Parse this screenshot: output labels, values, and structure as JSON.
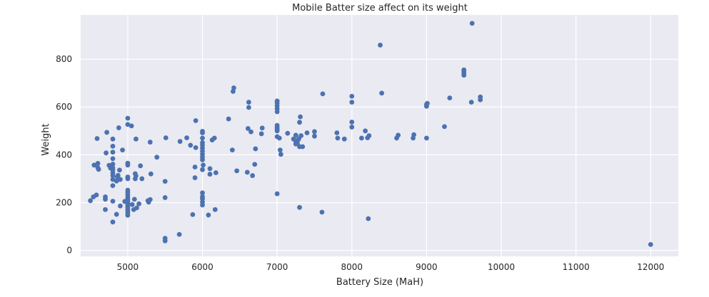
{
  "chart_data": {
    "type": "scatter",
    "title": "Mobile Batter size affect on its weight",
    "xlabel": "Battery Size (MaH)",
    "ylabel": "Weight",
    "xlim": [
      4370,
      12370
    ],
    "ylim": [
      -25,
      985
    ],
    "xticks": [
      5000,
      6000,
      7000,
      8000,
      9000,
      10000,
      11000,
      12000
    ],
    "yticks": [
      0,
      200,
      400,
      600,
      800
    ],
    "grid": true,
    "point_color": "#4c72b0",
    "background_color": "#eaeaf2",
    "points": [
      [
        4500,
        208
      ],
      [
        4540,
        224
      ],
      [
        4550,
        357
      ],
      [
        4580,
        232
      ],
      [
        4590,
        468
      ],
      [
        4600,
        346
      ],
      [
        4600,
        364
      ],
      [
        4610,
        339
      ],
      [
        4700,
        214
      ],
      [
        4700,
        224
      ],
      [
        4700,
        171
      ],
      [
        4710,
        408
      ],
      [
        4720,
        494
      ],
      [
        4750,
        356
      ],
      [
        4770,
        344
      ],
      [
        4800,
        119
      ],
      [
        4800,
        206
      ],
      [
        4800,
        271
      ],
      [
        4800,
        297
      ],
      [
        4800,
        313
      ],
      [
        4800,
        324
      ],
      [
        4800,
        336
      ],
      [
        4800,
        345
      ],
      [
        4800,
        361
      ],
      [
        4800,
        384
      ],
      [
        4800,
        411
      ],
      [
        4800,
        436
      ],
      [
        4800,
        466
      ],
      [
        4850,
        151
      ],
      [
        4850,
        290
      ],
      [
        4860,
        308
      ],
      [
        4870,
        314
      ],
      [
        4880,
        513
      ],
      [
        4890,
        336
      ],
      [
        4900,
        297
      ],
      [
        4900,
        186
      ],
      [
        4930,
        420
      ],
      [
        4960,
        205
      ],
      [
        5000,
        147
      ],
      [
        5000,
        156
      ],
      [
        5000,
        165
      ],
      [
        5000,
        172
      ],
      [
        5000,
        180
      ],
      [
        5000,
        188
      ],
      [
        5000,
        196
      ],
      [
        5000,
        204
      ],
      [
        5000,
        213
      ],
      [
        5000,
        222
      ],
      [
        5000,
        232
      ],
      [
        5000,
        242
      ],
      [
        5000,
        252
      ],
      [
        5000,
        300
      ],
      [
        5000,
        307
      ],
      [
        5000,
        357
      ],
      [
        5000,
        365
      ],
      [
        5000,
        527
      ],
      [
        5000,
        553
      ],
      [
        5050,
        521
      ],
      [
        5060,
        192
      ],
      [
        5080,
        171
      ],
      [
        5090,
        214
      ],
      [
        5100,
        300
      ],
      [
        5100,
        321
      ],
      [
        5110,
        466
      ],
      [
        5110,
        312
      ],
      [
        5120,
        178
      ],
      [
        5150,
        195
      ],
      [
        5170,
        354
      ],
      [
        5190,
        300
      ],
      [
        5270,
        208
      ],
      [
        5280,
        202
      ],
      [
        5300,
        213
      ],
      [
        5300,
        453
      ],
      [
        5310,
        320
      ],
      [
        5390,
        390
      ],
      [
        5500,
        40
      ],
      [
        5500,
        51
      ],
      [
        5500,
        221
      ],
      [
        5500,
        289
      ],
      [
        5510,
        471
      ],
      [
        5690,
        67
      ],
      [
        5700,
        456
      ],
      [
        5790,
        471
      ],
      [
        5840,
        440
      ],
      [
        5870,
        150
      ],
      [
        5900,
        304
      ],
      [
        5900,
        349
      ],
      [
        5910,
        543
      ],
      [
        5910,
        430
      ],
      [
        6000,
        190
      ],
      [
        6000,
        203
      ],
      [
        6000,
        216
      ],
      [
        6000,
        225
      ],
      [
        6000,
        241
      ],
      [
        6000,
        338
      ],
      [
        6000,
        379
      ],
      [
        6000,
        390
      ],
      [
        6000,
        402
      ],
      [
        6000,
        415
      ],
      [
        6000,
        428
      ],
      [
        6000,
        440
      ],
      [
        6000,
        451
      ],
      [
        6000,
        470
      ],
      [
        6000,
        492
      ],
      [
        6000,
        498
      ],
      [
        6010,
        357
      ],
      [
        6080,
        148
      ],
      [
        6100,
        319
      ],
      [
        6100,
        342
      ],
      [
        6130,
        462
      ],
      [
        6160,
        470
      ],
      [
        6170,
        171
      ],
      [
        6180,
        325
      ],
      [
        6350,
        550
      ],
      [
        6400,
        420
      ],
      [
        6410,
        665
      ],
      [
        6420,
        680
      ],
      [
        6460,
        333
      ],
      [
        6600,
        327
      ],
      [
        6610,
        510
      ],
      [
        6620,
        598
      ],
      [
        6620,
        620
      ],
      [
        6650,
        496
      ],
      [
        6670,
        313
      ],
      [
        6700,
        360
      ],
      [
        6710,
        425
      ],
      [
        6790,
        488
      ],
      [
        6800,
        512
      ],
      [
        7000,
        237
      ],
      [
        7000,
        476
      ],
      [
        7000,
        500
      ],
      [
        7000,
        507
      ],
      [
        7000,
        514
      ],
      [
        7000,
        523
      ],
      [
        7000,
        580
      ],
      [
        7000,
        593
      ],
      [
        7000,
        605
      ],
      [
        7000,
        616
      ],
      [
        7000,
        625
      ],
      [
        7030,
        470
      ],
      [
        7040,
        420
      ],
      [
        7050,
        402
      ],
      [
        7140,
        490
      ],
      [
        7220,
        466
      ],
      [
        7250,
        455
      ],
      [
        7250,
        445
      ],
      [
        7250,
        482
      ],
      [
        7270,
        448
      ],
      [
        7280,
        462
      ],
      [
        7290,
        467
      ],
      [
        7300,
        180
      ],
      [
        7300,
        434
      ],
      [
        7300,
        536
      ],
      [
        7310,
        559
      ],
      [
        7320,
        480
      ],
      [
        7340,
        434
      ],
      [
        7400,
        492
      ],
      [
        7500,
        478
      ],
      [
        7500,
        497
      ],
      [
        7600,
        160
      ],
      [
        7610,
        655
      ],
      [
        7800,
        492
      ],
      [
        7810,
        470
      ],
      [
        7900,
        466
      ],
      [
        8000,
        516
      ],
      [
        8000,
        537
      ],
      [
        8000,
        620
      ],
      [
        8000,
        645
      ],
      [
        8130,
        470
      ],
      [
        8180,
        500
      ],
      [
        8210,
        471
      ],
      [
        8220,
        133
      ],
      [
        8230,
        480
      ],
      [
        8380,
        859
      ],
      [
        8400,
        658
      ],
      [
        8600,
        470
      ],
      [
        8620,
        482
      ],
      [
        8820,
        470
      ],
      [
        8830,
        484
      ],
      [
        9000,
        470
      ],
      [
        9000,
        603
      ],
      [
        9000,
        611
      ],
      [
        9010,
        615
      ],
      [
        9240,
        518
      ],
      [
        9310,
        638
      ],
      [
        9500,
        733
      ],
      [
        9500,
        740
      ],
      [
        9500,
        747
      ],
      [
        9500,
        755
      ],
      [
        9600,
        620
      ],
      [
        9610,
        950
      ],
      [
        9720,
        630
      ],
      [
        9720,
        642
      ],
      [
        12000,
        25
      ]
    ]
  }
}
